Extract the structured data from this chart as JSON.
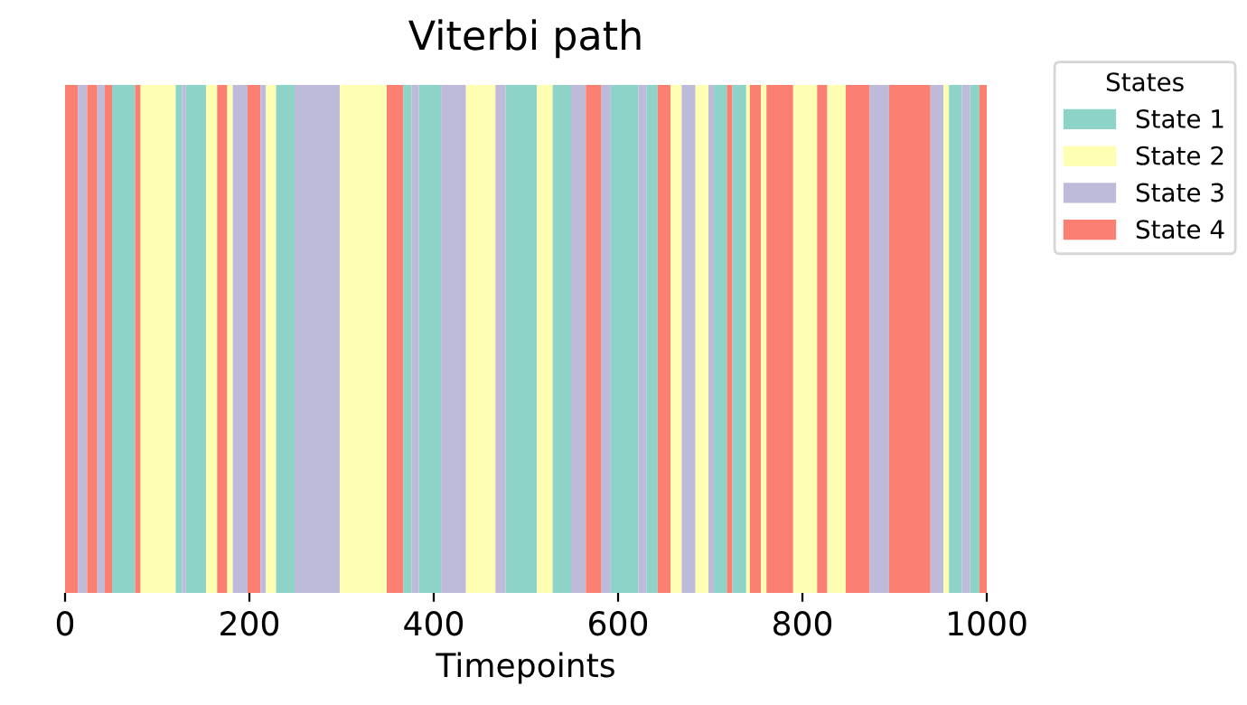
{
  "chart_data": {
    "type": "bar",
    "orientation": "horizontal",
    "stacked": true,
    "title": "Viterbi path",
    "xlabel": "Timepoints",
    "legend_title": "States",
    "legend": "top right",
    "xlim": [
      0,
      1000
    ],
    "xticks": [
      0,
      200,
      400,
      600,
      800,
      1000
    ],
    "tick_labels": "x",
    "categories": [
      null
    ],
    "series": [
      {
        "name": "State 4",
        "color": "#fb8072",
        "values": [
          14
        ]
      },
      {
        "name": "State 3",
        "color": "#bebada",
        "values": [
          10
        ]
      },
      {
        "color": "#fb8072",
        "values": [
          11
        ]
      },
      {
        "color": "#bebada",
        "values": [
          8
        ]
      },
      {
        "color": "#fb8072",
        "values": [
          8
        ]
      },
      {
        "name": "State 1",
        "color": "#8dd3c7",
        "values": [
          25
        ]
      },
      {
        "color": "#fb8072",
        "values": [
          6
        ]
      },
      {
        "name": "State 2",
        "color": "#ffffb3",
        "values": [
          38
        ]
      },
      {
        "color": "#8dd3c7",
        "values": [
          7
        ]
      },
      {
        "color": "#bebada",
        "values": [
          4
        ]
      },
      {
        "color": "#8dd3c7",
        "values": [
          22
        ]
      },
      {
        "color": "#ffffb3",
        "values": [
          12
        ]
      },
      {
        "color": "#fb8072",
        "values": [
          11
        ]
      },
      {
        "color": "#ffffb3",
        "values": [
          6
        ]
      },
      {
        "color": "#bebada",
        "values": [
          16
        ]
      },
      {
        "color": "#fb8072",
        "values": [
          14
        ]
      },
      {
        "color": "#bebada",
        "values": [
          6
        ]
      },
      {
        "color": "#ffffb3",
        "values": [
          11
        ]
      },
      {
        "color": "#8dd3c7",
        "values": [
          20
        ]
      },
      {
        "color": "#bebada",
        "values": [
          49
        ]
      },
      {
        "color": "#ffffb3",
        "values": [
          51
        ]
      },
      {
        "color": "#fb8072",
        "values": [
          18
        ]
      },
      {
        "color": "#8dd3c7",
        "values": [
          9
        ]
      },
      {
        "color": "#bebada",
        "values": [
          8
        ]
      },
      {
        "color": "#8dd3c7",
        "values": [
          24
        ]
      },
      {
        "color": "#bebada",
        "values": [
          27
        ]
      },
      {
        "color": "#ffffb3",
        "values": [
          32
        ]
      },
      {
        "color": "#bebada",
        "values": [
          11
        ]
      },
      {
        "color": "#8dd3c7",
        "values": [
          34
        ]
      },
      {
        "color": "#ffffb3",
        "values": [
          17
        ]
      },
      {
        "color": "#8dd3c7",
        "values": [
          20
        ]
      },
      {
        "color": "#bebada",
        "values": [
          16
        ]
      },
      {
        "color": "#fb8072",
        "values": [
          17
        ]
      },
      {
        "color": "#bebada",
        "values": [
          10
        ]
      },
      {
        "color": "#8dd3c7",
        "values": [
          30
        ]
      },
      {
        "color": "#bebada",
        "values": [
          9
        ]
      },
      {
        "color": "#8dd3c7",
        "values": [
          12
        ]
      },
      {
        "color": "#fb8072",
        "values": [
          14
        ]
      },
      {
        "color": "#ffffb3",
        "values": [
          12
        ]
      },
      {
        "color": "#bebada",
        "values": [
          15
        ]
      },
      {
        "color": "#ffffb3",
        "values": [
          14
        ]
      },
      {
        "color": "#bebada",
        "values": [
          6
        ]
      },
      {
        "color": "#8dd3c7",
        "values": [
          14
        ]
      },
      {
        "color": "#fb8072",
        "values": [
          6
        ]
      },
      {
        "color": "#8dd3c7",
        "values": [
          15
        ]
      },
      {
        "color": "#ffffb3",
        "values": [
          4
        ]
      },
      {
        "color": "#fb8072",
        "values": [
          12
        ]
      },
      {
        "color": "#ffffb3",
        "values": [
          6
        ]
      },
      {
        "color": "#fb8072",
        "values": [
          29
        ]
      },
      {
        "color": "#ffffb3",
        "values": [
          26
        ]
      },
      {
        "color": "#fb8072",
        "values": [
          11
        ]
      },
      {
        "color": "#ffffb3",
        "values": [
          20
        ]
      },
      {
        "color": "#fb8072",
        "values": [
          26
        ]
      },
      {
        "color": "#bebada",
        "values": [
          21
        ]
      },
      {
        "color": "#fb8072",
        "values": [
          45
        ]
      },
      {
        "color": "#bebada",
        "values": [
          14
        ]
      },
      {
        "color": "#ffffb3",
        "values": [
          6
        ]
      },
      {
        "color": "#8dd3c7",
        "values": [
          14
        ]
      },
      {
        "color": "#bebada",
        "values": [
          9
        ]
      },
      {
        "color": "#8dd3c7",
        "values": [
          10
        ]
      },
      {
        "color": "#fb8072",
        "values": [
          8
        ]
      }
    ]
  }
}
